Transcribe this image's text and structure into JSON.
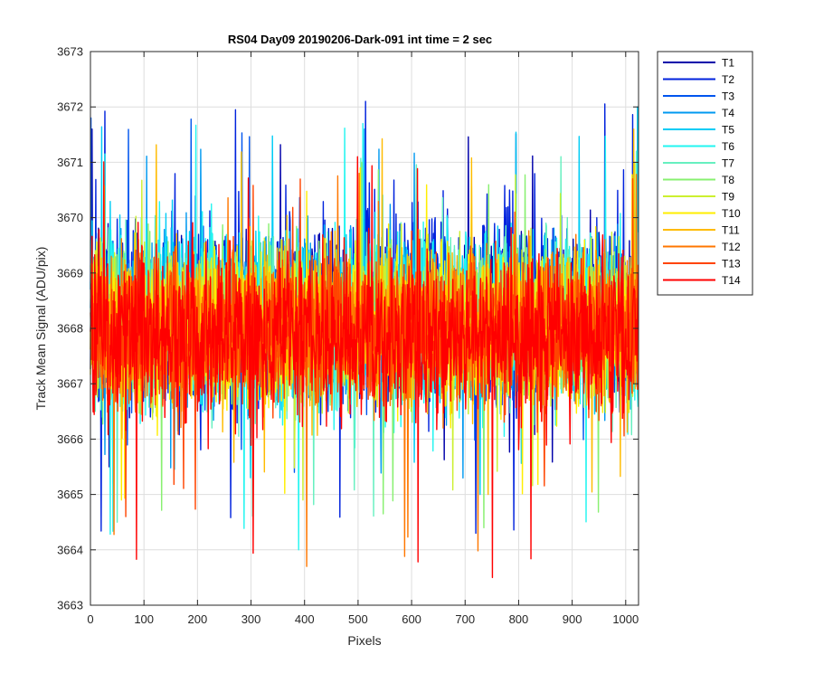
{
  "chart_data": {
    "type": "line",
    "title": "RS04 Day09 20190206-Dark-091 int time = 2 sec",
    "xlabel": "Pixels",
    "ylabel": "Track Mean Signal (ADU/pix)",
    "xlim": [
      0,
      1024
    ],
    "ylim": [
      3663,
      3673
    ],
    "xticks": [
      "0",
      "100",
      "200",
      "300",
      "400",
      "500",
      "600",
      "700",
      "800",
      "900",
      "1000"
    ],
    "yticks": [
      "3663",
      "3664",
      "3665",
      "3666",
      "3667",
      "3668",
      "3669",
      "3670",
      "3671",
      "3672",
      "3673"
    ],
    "grid": true,
    "legend_position": "outside-top-right",
    "n_points_per_series": 1024,
    "series": [
      {
        "name": "T1",
        "color": "#0000AA",
        "mean": 3668.3,
        "min": 3665.5,
        "max": 3671.6
      },
      {
        "name": "T2",
        "color": "#0022DD",
        "mean": 3668.3,
        "min": 3664.3,
        "max": 3672.1
      },
      {
        "name": "T3",
        "color": "#0055EE",
        "mean": 3668.2,
        "min": 3665.4,
        "max": 3671.8
      },
      {
        "name": "T4",
        "color": "#0099F0",
        "mean": 3668.2,
        "min": 3665.2,
        "max": 3671.6
      },
      {
        "name": "T5",
        "color": "#00CCF5",
        "mean": 3668.2,
        "min": 3665.0,
        "max": 3672.0
      },
      {
        "name": "T6",
        "color": "#22F5F0",
        "mean": 3668.1,
        "min": 3664.0,
        "max": 3671.7
      },
      {
        "name": "T7",
        "color": "#66F0C0",
        "mean": 3668.1,
        "min": 3664.5,
        "max": 3671.2
      },
      {
        "name": "T8",
        "color": "#88F070",
        "mean": 3668.1,
        "min": 3664.4,
        "max": 3671.0
      },
      {
        "name": "T9",
        "color": "#CCF030",
        "mean": 3668.1,
        "min": 3664.9,
        "max": 3671.0
      },
      {
        "name": "T10",
        "color": "#FFEE00",
        "mean": 3668.0,
        "min": 3664.9,
        "max": 3670.9
      },
      {
        "name": "T11",
        "color": "#FFBB00",
        "mean": 3668.0,
        "min": 3665.0,
        "max": 3671.6
      },
      {
        "name": "T12",
        "color": "#FF7700",
        "mean": 3668.0,
        "min": 3663.7,
        "max": 3670.8
      },
      {
        "name": "T13",
        "color": "#FF4400",
        "mean": 3667.9,
        "min": 3664.6,
        "max": 3670.7
      },
      {
        "name": "T14",
        "color": "#FF0000",
        "mean": 3667.9,
        "min": 3663.5,
        "max": 3671.1
      }
    ]
  }
}
